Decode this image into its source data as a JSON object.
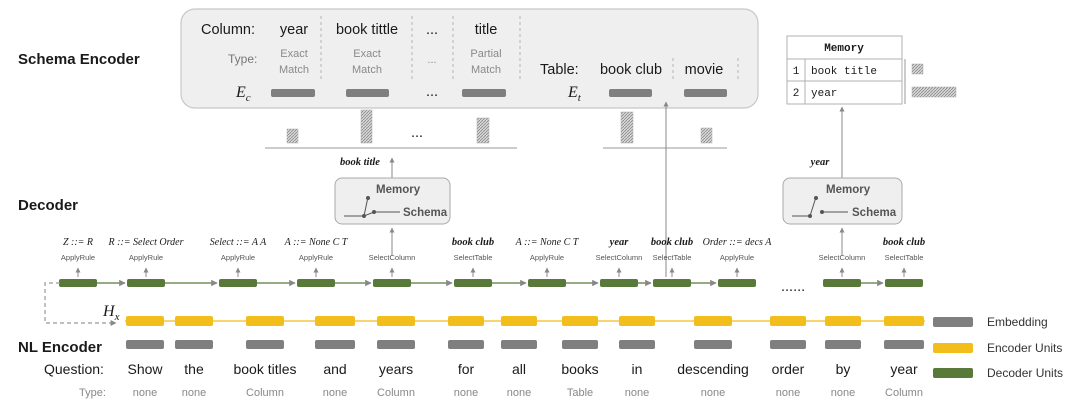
{
  "sections": {
    "schema_encoder": "Schema Encoder",
    "decoder": "Decoder",
    "nl_encoder": "NL Encoder"
  },
  "schema": {
    "column_header": "Column:",
    "type_header": "Type:",
    "table_header": "Table:",
    "ec_label": "E",
    "ec_sub": "c",
    "et_label": "E",
    "et_sub": "t",
    "columns": [
      {
        "name": "year",
        "type": [
          "Exact",
          "Match"
        ]
      },
      {
        "name": "book tittle",
        "type": [
          "Exact",
          "Match"
        ]
      },
      {
        "name": "...",
        "type": [
          "..."
        ]
      },
      {
        "name": "title",
        "type": [
          "Partial",
          "Match"
        ]
      }
    ],
    "tables": [
      "book club",
      "movie"
    ],
    "ellipsis": "..."
  },
  "memory_table": {
    "title": "Memory",
    "rows": [
      {
        "index": "1",
        "value": "book title"
      },
      {
        "index": "2",
        "value": "year"
      }
    ]
  },
  "pointer_boxes": [
    {
      "memory": "Memory",
      "schema": "Schema",
      "output": "book title"
    },
    {
      "memory": "Memory",
      "schema": "Schema",
      "output": "year"
    }
  ],
  "decoder_steps": [
    {
      "rule": "Z ::= R",
      "action": "ApplyRule",
      "bold": false
    },
    {
      "rule": "R ::= Select Order",
      "action": "ApplyRule",
      "bold": false
    },
    {
      "rule": "Select ::= A A",
      "action": "ApplyRule",
      "bold": false
    },
    {
      "rule": "A ::= None C T",
      "action": "ApplyRule",
      "bold": false
    },
    {
      "rule": "",
      "action": "SelectColumn",
      "bold": false
    },
    {
      "rule": "book club",
      "action": "SelectTable",
      "bold": true
    },
    {
      "rule": "A ::= None C T",
      "action": "ApplyRule",
      "bold": false
    },
    {
      "rule": "year",
      "action": "SelectColumn",
      "bold": true
    },
    {
      "rule": "book club",
      "action": "SelectTable",
      "bold": true
    },
    {
      "rule": "Order ::= decs A",
      "action": "ApplyRule",
      "bold": false
    },
    {
      "rule": "",
      "action": "SelectColumn",
      "bold": false
    },
    {
      "rule": "book club",
      "action": "SelectTable",
      "bold": true
    }
  ],
  "decoder_dots": "......",
  "hx": {
    "label": "H",
    "sub": "x"
  },
  "question": {
    "label": "Question:",
    "type_label": "Type:",
    "tokens": [
      {
        "word": "Show",
        "type": "none"
      },
      {
        "word": "the",
        "type": "none"
      },
      {
        "word": "book titles",
        "type": "Column"
      },
      {
        "word": "and",
        "type": "none"
      },
      {
        "word": "years",
        "type": "Column"
      },
      {
        "word": "for",
        "type": "none"
      },
      {
        "word": "all",
        "type": "none"
      },
      {
        "word": "books",
        "type": "Table"
      },
      {
        "word": "in",
        "type": "none"
      },
      {
        "word": "descending",
        "type": "none"
      },
      {
        "word": "order",
        "type": "none"
      },
      {
        "word": "by",
        "type": "none"
      },
      {
        "word": "year",
        "type": "Column"
      }
    ]
  },
  "legend": [
    {
      "label": "Embedding",
      "color": "#7f7f7f"
    },
    {
      "label": "Encoder Units",
      "color": "#f2be1c"
    },
    {
      "label": "Decoder Units",
      "color": "#58793a"
    }
  ],
  "colors": {
    "embedding": "#7f7f7f",
    "encoder": "#f2be1c",
    "decoder": "#58793a",
    "panel": "#efefef",
    "panel_stroke": "#c8c8c8"
  }
}
